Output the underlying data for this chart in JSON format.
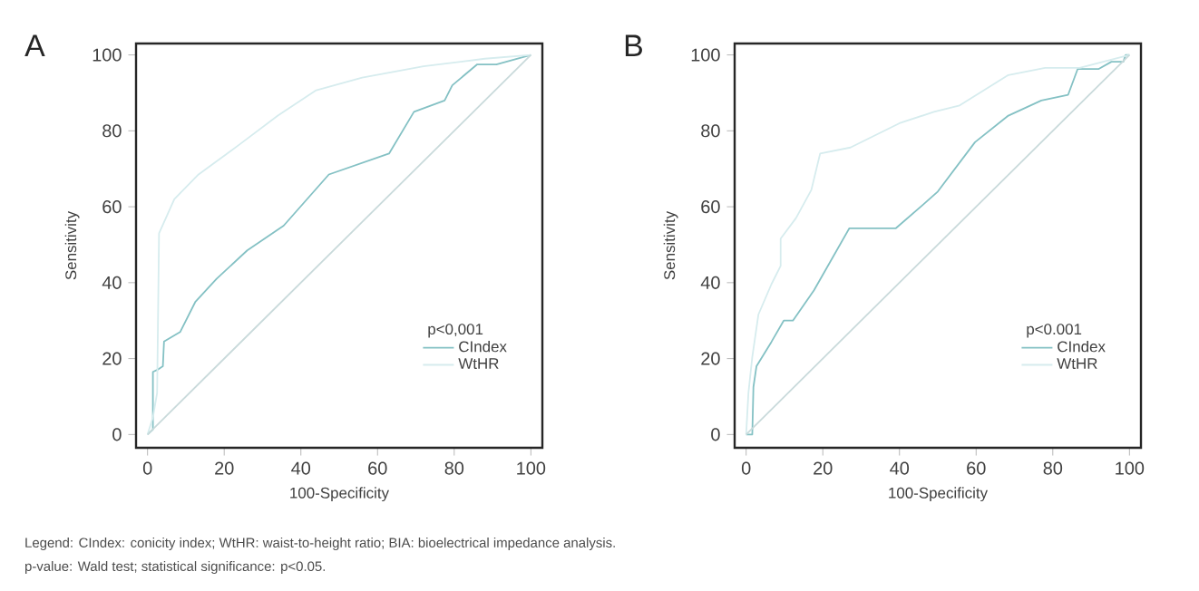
{
  "chart_data": [
    {
      "type": "line",
      "title": "A",
      "xlabel": "100-Specificity",
      "ylabel": "Sensitivity",
      "legend_title": "p<0,001",
      "legend": "bottom right",
      "xlim": [
        -3,
        103
      ],
      "ylim": [
        -3.5,
        103
      ],
      "xticks": [
        0,
        20,
        40,
        60,
        80,
        100
      ],
      "yticks": [
        0,
        20,
        40,
        60,
        80,
        100
      ],
      "series": [
        {
          "name": "CIndex",
          "color": "#84c1c4",
          "x": [
            0,
            1.4,
            1.4,
            2.5,
            4,
            4.3,
            8.5,
            12.5,
            18,
            26,
            35.5,
            47.3,
            63,
            69.5,
            77.5,
            79.5,
            86,
            91,
            100
          ],
          "values": [
            0,
            1.3,
            16.5,
            17,
            18,
            24.5,
            27,
            35,
            41,
            48.5,
            55,
            68.5,
            74,
            85,
            88,
            92,
            97.5,
            97.5,
            100
          ]
        },
        {
          "name": "WtHR",
          "color": "#d6ecee",
          "x": [
            0,
            1.4,
            2.5,
            3,
            7,
            13.3,
            24,
            34,
            44,
            56,
            72,
            88,
            100
          ],
          "values": [
            0,
            4.5,
            11,
            53,
            62,
            68.5,
            76.4,
            84,
            90.7,
            94,
            97,
            99,
            100
          ]
        },
        {
          "color": "#c9dadb",
          "x": [
            0,
            100
          ],
          "values": [
            0,
            100
          ]
        }
      ],
      "annotations": [
        "Legend: CIndex: conicity index; WtHR: waist-to-height ratio; BIA: bioelectrical impedance analysis.",
        "p-value: Wald test; statistical significance: p<0.05."
      ]
    },
    {
      "type": "line",
      "title": "B",
      "xlabel": "100-Specificity",
      "ylabel": "Sensitivity",
      "legend_title": "p<0.001",
      "legend": "bottom right",
      "xlim": [
        -3,
        103
      ],
      "ylim": [
        -3.5,
        103
      ],
      "xticks": [
        0,
        20,
        40,
        60,
        80,
        100
      ],
      "yticks": [
        0,
        20,
        40,
        60,
        80,
        100
      ],
      "series": [
        {
          "name": "CIndex",
          "color": "#84c1c4",
          "x": [
            0,
            1.6,
            1.9,
            2.7,
            6.6,
            9.8,
            12.2,
            17.7,
            26.9,
            39,
            46,
            50,
            59.7,
            68.4,
            77,
            84,
            86.5,
            92,
            95.3,
            98.4,
            99,
            100
          ],
          "values": [
            0,
            0,
            12.5,
            18,
            24.4,
            30,
            30,
            38,
            54.3,
            54.3,
            60.4,
            64,
            77,
            84,
            88,
            89.5,
            96.3,
            96.3,
            98.2,
            98.2,
            100,
            100
          ]
        },
        {
          "name": "WtHR",
          "color": "#d6ecee",
          "x": [
            0,
            0.6,
            1.6,
            3.2,
            6.6,
            9,
            9,
            13,
            17,
            19.3,
            27.2,
            40,
            49,
            55.7,
            68.4,
            78,
            87,
            100
          ],
          "values": [
            0,
            11,
            20.4,
            31.6,
            39.6,
            44.4,
            51.6,
            57,
            64.4,
            74,
            75.6,
            82,
            85,
            86.7,
            94.7,
            96.6,
            96.6,
            100
          ]
        },
        {
          "color": "#c9dadb",
          "x": [
            0,
            100
          ],
          "values": [
            0,
            100
          ]
        }
      ]
    }
  ]
}
